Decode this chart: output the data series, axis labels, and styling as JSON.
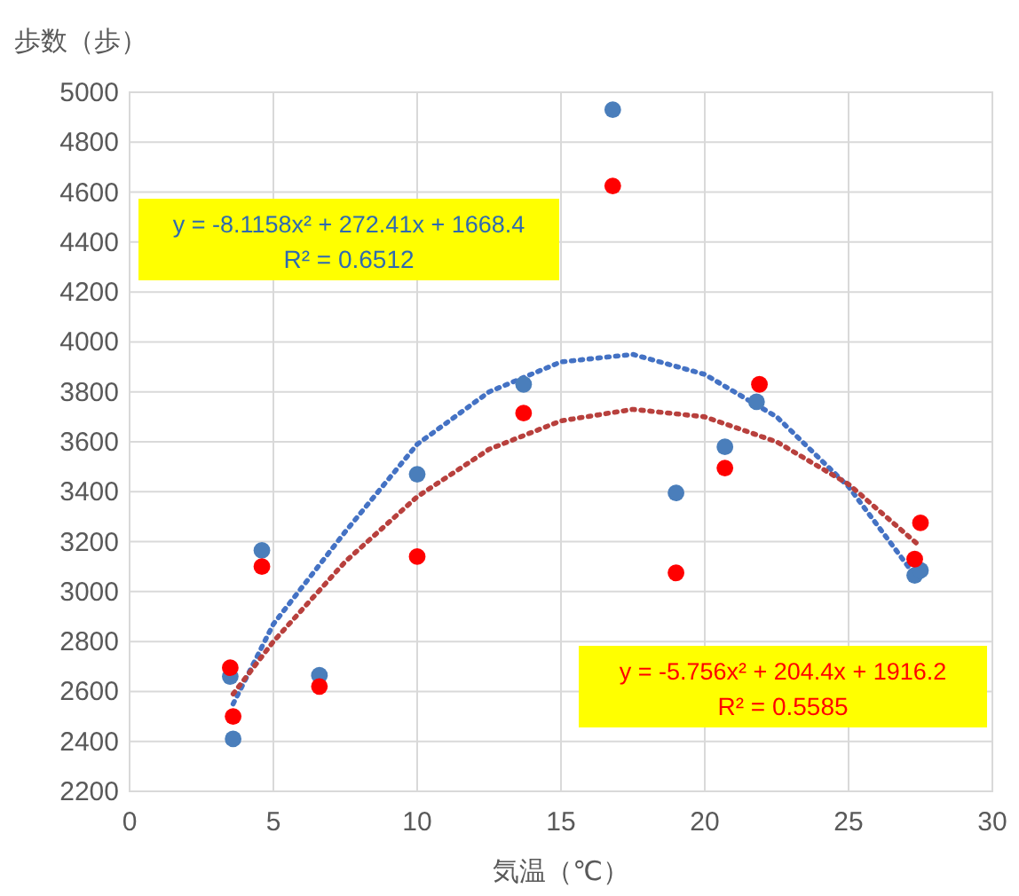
{
  "chart_data": {
    "type": "scatter",
    "ylabel": "歩数（歩）",
    "xlabel": "気温（℃）",
    "xlim": [
      0,
      30
    ],
    "xticks": [
      0,
      5,
      10,
      15,
      20,
      25,
      30
    ],
    "ylim": [
      2200,
      5000
    ],
    "yticks": [
      2200,
      2400,
      2600,
      2800,
      3000,
      3200,
      3400,
      3600,
      3800,
      4000,
      4200,
      4400,
      4600,
      4800,
      5000
    ],
    "grid": true,
    "marker": "circle",
    "annotations": [
      "y = -8.1158x² + 272.41x + 1668.4",
      "R² = 0.6512",
      "y = -5.756x² + 204.4x + 1916.2",
      "R² = 0.5585"
    ],
    "series": [
      {
        "type": "line",
        "color": "#4472c4",
        "line_style": "dotted",
        "marker": "none",
        "x": [
          3.6,
          5,
          7.5,
          10,
          12.5,
          15,
          17.5,
          20,
          22.5,
          25,
          27.4
        ],
        "values": [
          2550,
          2870,
          3240,
          3590,
          3800,
          3920,
          3950,
          3870,
          3700,
          3420,
          3050
        ]
      },
      {
        "type": "line",
        "color": "#b8403d",
        "line_style": "dotted",
        "marker": "none",
        "x": [
          3.6,
          5,
          7.5,
          10,
          12.5,
          15,
          17.5,
          20,
          22.5,
          25,
          27.4
        ],
        "values": [
          2590,
          2800,
          3120,
          3380,
          3570,
          3684,
          3730,
          3700,
          3600,
          3430,
          3190
        ]
      },
      {
        "color": "#4a7ebb",
        "x": [
          3.5,
          3.6,
          4.6,
          6.6,
          10,
          13.7,
          16.8,
          19,
          20.7,
          21.8,
          27.3,
          27.5
        ],
        "values": [
          2660,
          2410,
          3165,
          2665,
          3470,
          3830,
          4930,
          3395,
          3580,
          3760,
          3065,
          3085
        ]
      },
      {
        "color": "#ff0000",
        "x": [
          3.5,
          3.6,
          4.6,
          6.6,
          10,
          13.7,
          16.8,
          19,
          20.7,
          21.9,
          27.3,
          27.5
        ],
        "values": [
          2695,
          2500,
          3100,
          2620,
          3140,
          3715,
          4625,
          3075,
          3495,
          3830,
          3130,
          3275
        ]
      }
    ]
  }
}
